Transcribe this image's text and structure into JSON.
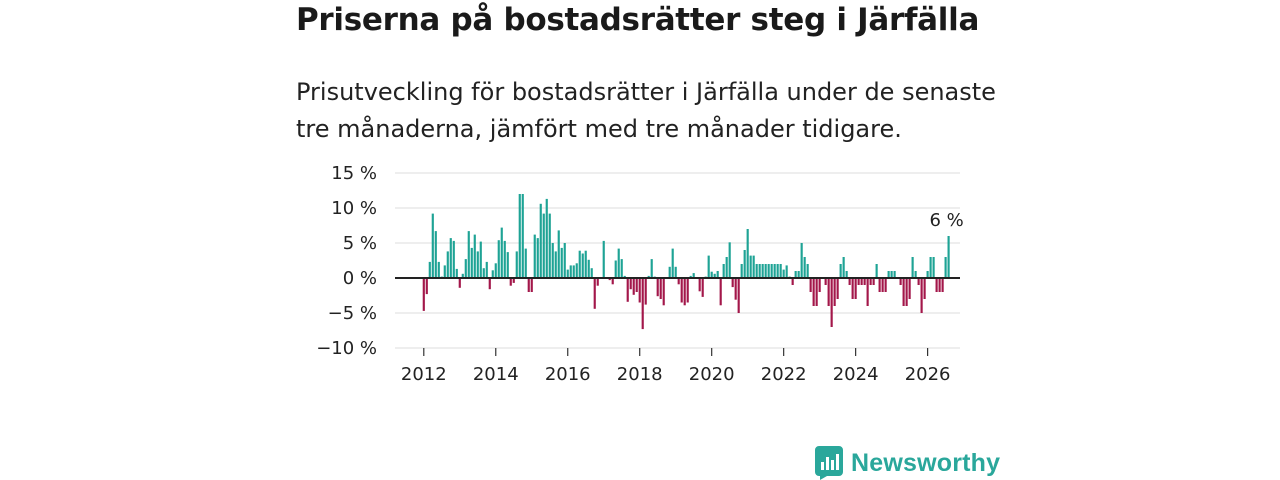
{
  "title": "Priserna på bostadsrätter steg i Järfälla",
  "subtitle": "Prisutveckling för bostadsrätter i Järfälla under de senaste tre månaderna, jämfört med tre månader tidigare.",
  "brand": {
    "name": "Newsworthy",
    "icon": "newsworthy-logo-icon"
  },
  "colors": {
    "positive": "#1ea395",
    "negative": "#a3174a",
    "grid": "#dddddd",
    "zero": "#222222",
    "brand": "#2aa79b"
  },
  "chart_data": {
    "type": "bar",
    "title": "Priserna på bostadsrätter steg i Järfälla",
    "xlabel": "",
    "ylabel": "",
    "ylim": [
      -10,
      15
    ],
    "y_ticks": [
      15,
      10,
      5,
      0,
      -5,
      -10
    ],
    "y_tick_labels": [
      "15 %",
      "10 %",
      "5 %",
      "0 %",
      "−5 %",
      "−10 %"
    ],
    "xlim": [
      2011.2,
      2026.9
    ],
    "x_ticks": [
      2012,
      2014,
      2016,
      2018,
      2020,
      2022,
      2024,
      2026
    ],
    "x_tick_labels": [
      "2012",
      "2014",
      "2016",
      "2018",
      "2020",
      "2022",
      "2024",
      "2026"
    ],
    "start_year": 2012,
    "start_month": 1,
    "values": [
      -4.7,
      -2.3,
      2.3,
      9.2,
      6.7,
      2.3,
      0.2,
      1.8,
      3.8,
      5.7,
      5.3,
      1.3,
      -1.4,
      0.6,
      2.7,
      6.7,
      4.3,
      6.2,
      3.8,
      5.2,
      1.4,
      2.3,
      -1.6,
      1.1,
      2.1,
      5.4,
      7.2,
      5.3,
      3.7,
      -1.1,
      -0.7,
      3.8,
      12.0,
      12.0,
      4.2,
      -2.0,
      -2.0,
      6.2,
      5.7,
      10.6,
      9.2,
      11.3,
      9.2,
      5.0,
      3.8,
      6.8,
      4.3,
      5.0,
      1.2,
      1.8,
      1.8,
      2.1,
      3.9,
      3.5,
      3.9,
      2.6,
      1.4,
      -4.4,
      -1.1,
      0.0,
      5.3,
      0.1,
      -0.3,
      -0.9,
      2.5,
      4.2,
      2.7,
      0.3,
      -3.4,
      -1.6,
      -2.4,
      -2.0,
      -3.5,
      -7.3,
      -3.8,
      0.3,
      2.7,
      0.2,
      -2.6,
      -3.0,
      -3.9,
      0.0,
      1.6,
      4.2,
      1.6,
      -0.9,
      -3.5,
      -3.9,
      -3.5,
      0.3,
      0.7,
      0.0,
      -1.9,
      -2.7,
      0.2,
      3.2,
      0.9,
      0.6,
      1.0,
      -3.9,
      2.0,
      3.0,
      5.1,
      -1.3,
      -3.1,
      -5.0,
      2.0,
      4.0,
      7.0,
      3.2,
      3.2,
      2.0,
      2.0,
      2.0,
      2.0,
      2.0,
      2.0,
      2.0,
      2.0,
      2.0,
      1.2,
      1.8,
      0.2,
      -1.0,
      1.0,
      1.0,
      5.0,
      3.0,
      2.0,
      -2.0,
      -4.0,
      -4.0,
      -2.0,
      0.0,
      -1.0,
      -4.0,
      -7.0,
      -4.0,
      -3.0,
      2.0,
      3.0,
      1.0,
      -1.0,
      -3.0,
      -3.0,
      -1.0,
      -1.0,
      -1.0,
      -4.0,
      -1.0,
      -1.0,
      2.0,
      -2.0,
      -2.0,
      -2.0,
      1.0,
      1.0,
      1.0,
      0.0,
      -1.0,
      -4.0,
      -4.0,
      -3.0,
      3.0,
      1.0,
      -1.0,
      -5.0,
      -3.0,
      1.0,
      3.0,
      3.0,
      -2.0,
      -2.0,
      -2.0,
      3.0,
      6.0
    ],
    "annotations": [
      {
        "label": "6 %",
        "target": "last"
      }
    ]
  }
}
